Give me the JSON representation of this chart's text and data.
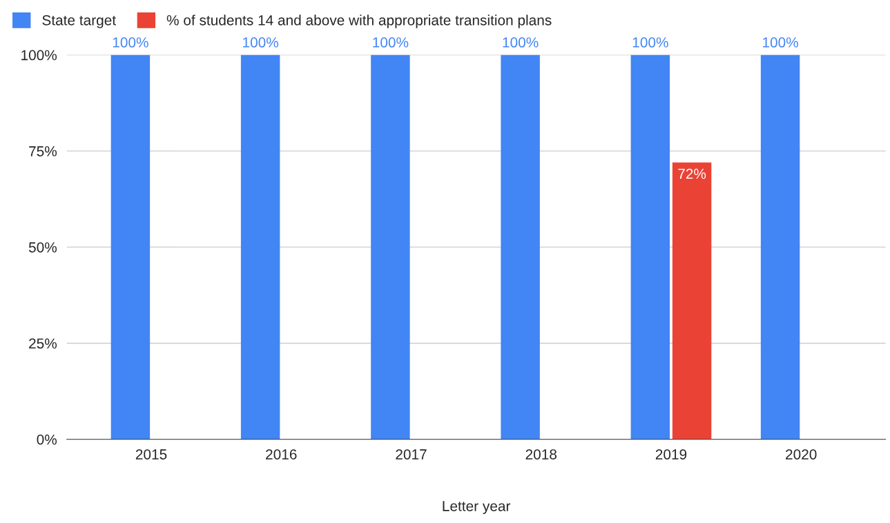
{
  "chart_data": {
    "type": "bar",
    "xlabel": "Letter year",
    "categories": [
      "2015",
      "2016",
      "2017",
      "2018",
      "2019",
      "2020"
    ],
    "series": [
      {
        "name": "State target",
        "color": "#4285f4",
        "values": [
          100,
          100,
          100,
          100,
          100,
          100
        ],
        "value_labels": [
          "100%",
          "100%",
          "100%",
          "100%",
          "100%",
          "100%"
        ]
      },
      {
        "name": "% of students 14 and above with appropriate transition plans",
        "color": "#ea4335",
        "values": [
          null,
          null,
          null,
          null,
          72,
          null
        ],
        "value_labels": [
          null,
          null,
          null,
          null,
          "72%",
          null
        ]
      }
    ],
    "ylim": [
      0,
      100
    ],
    "yticks": [
      {
        "value": 0,
        "label": "0%"
      },
      {
        "value": 25,
        "label": "25%"
      },
      {
        "value": 50,
        "label": "50%"
      },
      {
        "value": 75,
        "label": "75%"
      },
      {
        "value": 100,
        "label": "100%"
      }
    ],
    "grid": "y",
    "legend": "top left"
  }
}
